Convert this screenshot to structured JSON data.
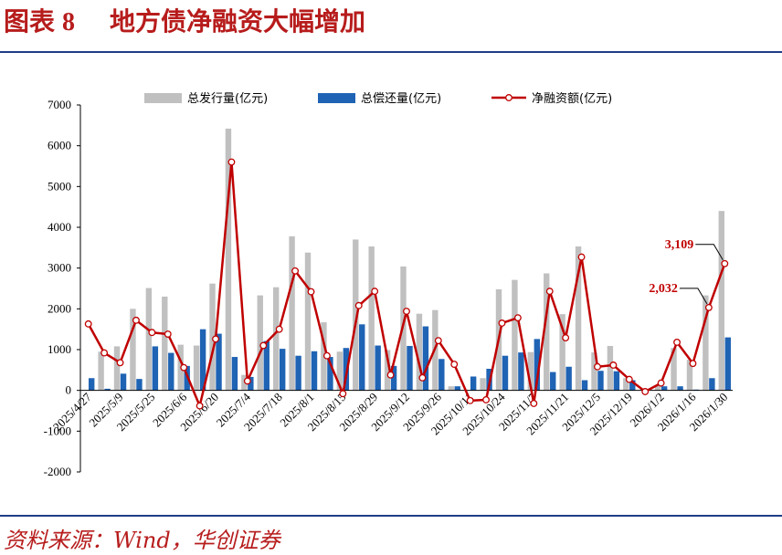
{
  "header": {
    "title_prefix": "图表",
    "title_number": "8",
    "title_text": "地方债净融资大幅增加"
  },
  "footer": {
    "source": "资料来源：Wind，华创证券"
  },
  "colors": {
    "issuance": "#c0c0c0",
    "repayment": "#1f63b4",
    "net": "#c00000",
    "title": "#b71c1c",
    "rule": "#1f3c88"
  },
  "chart_data": {
    "type": "bar",
    "series": [
      {
        "name": "总发行量(亿元)",
        "type": "bar",
        "values": [
          null,
          950,
          1080,
          2000,
          2510,
          2300,
          1120,
          1100,
          2620,
          6420,
          380,
          2330,
          2530,
          3780,
          3380,
          1670,
          950,
          3700,
          3530,
          990,
          3040,
          1880,
          1970,
          100,
          null,
          300,
          2480,
          2710,
          940,
          2870,
          1870,
          3530,
          930,
          1090,
          300,
          null,
          130,
          1040,
          750,
          2330,
          4400
        ]
      },
      {
        "name": "总偿还量(亿元)",
        "type": "bar",
        "values": [
          300,
          40,
          410,
          280,
          1080,
          920,
          600,
          1500,
          1390,
          820,
          330,
          1210,
          1020,
          850,
          960,
          820,
          1040,
          1620,
          1100,
          600,
          1090,
          1570,
          770,
          100,
          340,
          530,
          850,
          930,
          1260,
          450,
          580,
          250,
          480,
          470,
          250,
          10,
          100,
          100,
          20,
          300,
          1300
        ]
      },
      {
        "name": "净融资额(亿元)",
        "type": "line",
        "values": [
          1630,
          920,
          680,
          1720,
          1420,
          1380,
          560,
          -380,
          1260,
          5600,
          230,
          1100,
          1500,
          2930,
          2420,
          850,
          -80,
          2080,
          2430,
          380,
          1940,
          310,
          1220,
          640,
          -250,
          -230,
          1650,
          1780,
          -320,
          2430,
          1290,
          3270,
          580,
          620,
          270,
          -30,
          180,
          1180,
          660,
          2032,
          3109
        ]
      }
    ],
    "categories": [
      "2025/4/27",
      "2025/5/2",
      "2025/5/9",
      "2025/5/16",
      "2025/5/25",
      "2025/5/30",
      "2025/6/6",
      "2025/6/13",
      "2025/6/20",
      "2025/6/27",
      "2025/7/4",
      "2025/7/11",
      "2025/7/18",
      "2025/7/25",
      "2025/8/1",
      "2025/8/8",
      "2025/8/15",
      "2025/8/22",
      "2025/8/29",
      "2025/9/5",
      "2025/9/12",
      "2025/9/19",
      "2025/9/26",
      "2025/10/3",
      "2025/10/11",
      "2025/10/17",
      "2025/10/24",
      "2025/10/31",
      "2025/11/7",
      "2025/11/14",
      "2025/11/21",
      "2025/11/28",
      "2025/12/5",
      "2025/12/12",
      "2025/12/19",
      "2025/12/26",
      "2026/1/2",
      "2026/1/9",
      "2026/1/16",
      "2026/1/23",
      "2026/1/30"
    ],
    "x_tick_labels": [
      "2025/4/27",
      "2025/5/9",
      "2025/5/25",
      "2025/6/6",
      "2025/6/20",
      "2025/7/4",
      "2025/7/18",
      "2025/8/1",
      "2025/8/15",
      "2025/8/29",
      "2025/9/12",
      "2025/9/26",
      "2025/10/11",
      "2025/10/24",
      "2025/11/7",
      "2025/11/21",
      "2025/12/5",
      "2025/12/19",
      "2026/1/2",
      "2026/1/16",
      "2026/1/30"
    ],
    "y_ticks": [
      -2000,
      -1000,
      0,
      1000,
      2000,
      3000,
      4000,
      5000,
      6000,
      7000
    ],
    "ylim": [
      -2000,
      7000
    ],
    "grid": false,
    "legend": "top",
    "annotations": [
      {
        "label": "2,032",
        "index": 39
      },
      {
        "label": "3,109",
        "index": 40
      }
    ]
  }
}
